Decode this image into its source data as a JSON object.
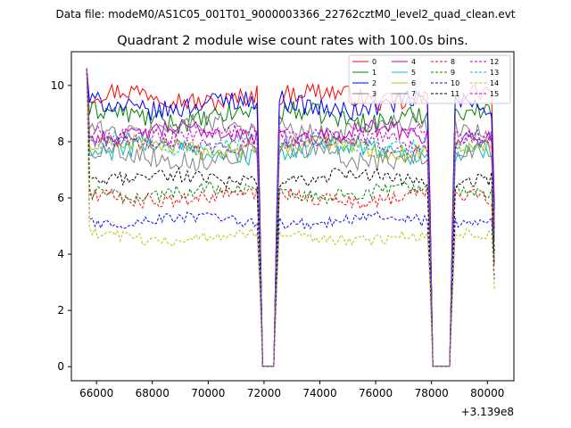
{
  "header": {
    "datafile": "Data file: modeM0/AS1C05_001T01_9000003366_22762cztM0_level2_quad_clean.evt"
  },
  "chart_data": {
    "type": "line",
    "title": "Quadrant 2 module wise count rates with 100.0s bins.",
    "xlabel": "",
    "ylabel": "",
    "x_offset_label": "+3.139e8",
    "xlim": [
      65100,
      80950
    ],
    "ylim": [
      -0.5,
      11.2
    ],
    "xticks": [
      66000,
      68000,
      70000,
      72000,
      74000,
      76000,
      78000,
      80000
    ],
    "xtick_labels": [
      "66000",
      "68000",
      "70000",
      "72000",
      "74000",
      "76000",
      "78000",
      "80000"
    ],
    "yticks": [
      0,
      2,
      4,
      6,
      8,
      10
    ],
    "ytick_labels": [
      "0",
      "2",
      "4",
      "6",
      "8",
      "10"
    ],
    "legend_position": "top-right",
    "x_start": 65650,
    "x_step": 100,
    "orbit_segments": [
      {
        "start": 65650,
        "end": 71850
      },
      {
        "start": 72450,
        "end": 77950
      },
      {
        "start": 78750,
        "end": 80250
      }
    ],
    "gap_value": 0.02,
    "spike_value": 10.6,
    "series": [
      {
        "name": "0",
        "color": "#ff0000",
        "dashed": false,
        "level": 9.6,
        "noise": 0.35
      },
      {
        "name": "1",
        "color": "#008000",
        "dashed": false,
        "level": 8.9,
        "noise": 0.35
      },
      {
        "name": "2",
        "color": "#0000ff",
        "dashed": false,
        "level": 9.3,
        "noise": 0.35
      },
      {
        "name": "3",
        "color": "#808080",
        "dashed": false,
        "level": 8.5,
        "noise": 0.35
      },
      {
        "name": "4",
        "color": "#bf00bf",
        "dashed": false,
        "level": 8.3,
        "noise": 0.3
      },
      {
        "name": "5",
        "color": "#00bfbf",
        "dashed": false,
        "level": 7.7,
        "noise": 0.35
      },
      {
        "name": "6",
        "color": "#bfbf00",
        "dashed": false,
        "level": 7.8,
        "noise": 0.3
      },
      {
        "name": "7",
        "color": "#808080",
        "dashed": false,
        "level": 7.5,
        "noise": 0.35
      },
      {
        "name": "8",
        "color": "#ff0000",
        "dashed": true,
        "level": 6.0,
        "noise": 0.25
      },
      {
        "name": "9",
        "color": "#008000",
        "dashed": true,
        "level": 6.2,
        "noise": 0.25
      },
      {
        "name": "10",
        "color": "#0000ff",
        "dashed": true,
        "level": 5.2,
        "noise": 0.2
      },
      {
        "name": "11",
        "color": "#000000",
        "dashed": true,
        "level": 6.7,
        "noise": 0.25
      },
      {
        "name": "12",
        "color": "#bf00bf",
        "dashed": true,
        "level": 8.0,
        "noise": 0.3
      },
      {
        "name": "13",
        "color": "#00bfbf",
        "dashed": true,
        "level": 7.9,
        "noise": 0.3
      },
      {
        "name": "14",
        "color": "#bfbf00",
        "dashed": true,
        "level": 4.6,
        "noise": 0.2
      },
      {
        "name": "15",
        "color": "#bf00bf",
        "dashed": true,
        "level": 8.2,
        "noise": 0.3
      }
    ]
  }
}
